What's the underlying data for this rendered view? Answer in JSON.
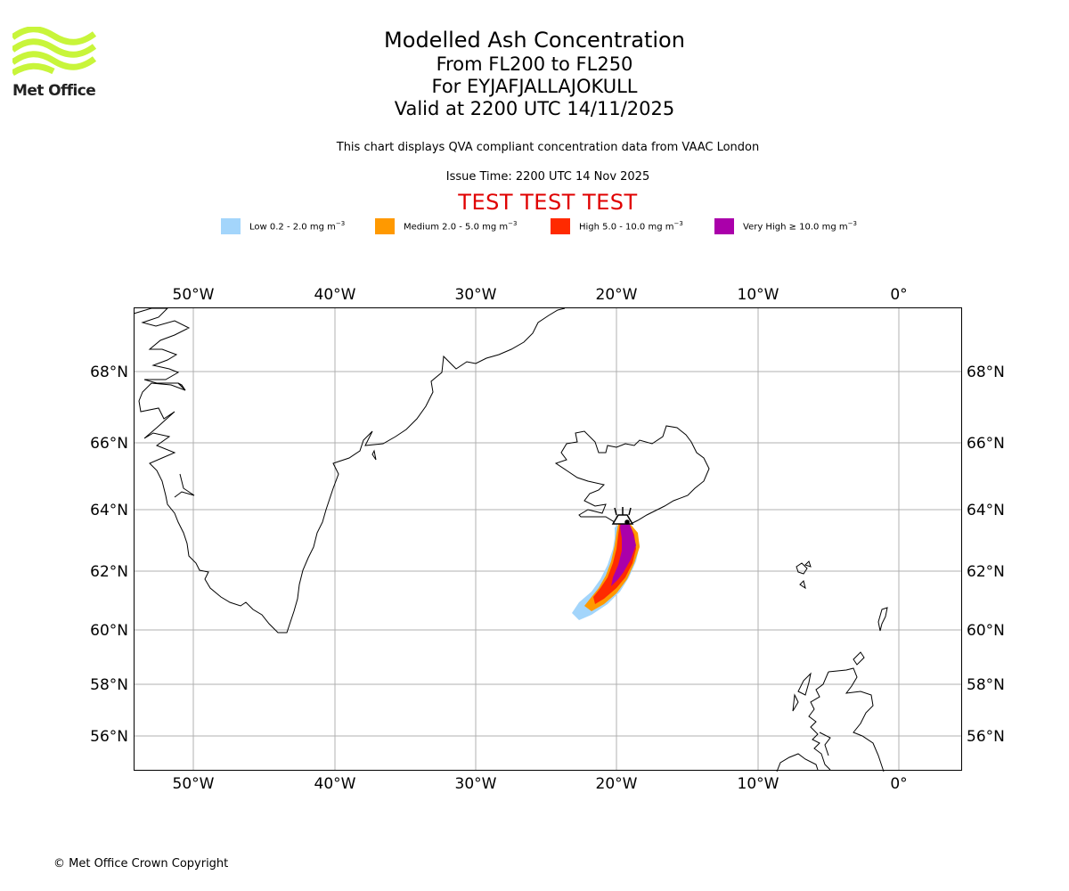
{
  "header": {
    "logo_text": "Met Office",
    "title": "Modelled Ash Concentration",
    "level_range": "From FL200 to FL250",
    "volcano": "For EYJAFJALLAJOKULL",
    "valid_time": "Valid at 2200 UTC 14/11/2025",
    "description": "This chart displays QVA compliant concentration data from VAAC London",
    "issue_time": "Issue Time: 2200 UTC 14 Nov 2025",
    "test_banner": "TEST TEST TEST"
  },
  "legend": [
    {
      "label": "Low 0.2 - 2.0 mg m",
      "exp": "−3",
      "color": "#a3d5fb"
    },
    {
      "label": "Medium 2.0 - 5.0 mg m",
      "exp": "−3",
      "color": "#ff9900"
    },
    {
      "label": "High 5.0 - 10.0 mg m",
      "exp": "−3",
      "color": "#ff2a00"
    },
    {
      "label": "Very High  ≥  10.0 mg m",
      "exp": "−3",
      "color": "#aa00aa"
    }
  ],
  "map": {
    "lon_range": [
      -54.2,
      4.4
    ],
    "lat_range": [
      54.9,
      69.8
    ],
    "lon_ticks": [
      {
        "lon": -50,
        "label": "50°W"
      },
      {
        "lon": -40,
        "label": "40°W"
      },
      {
        "lon": -30,
        "label": "30°W"
      },
      {
        "lon": -20,
        "label": "20°W"
      },
      {
        "lon": -10,
        "label": "10°W"
      },
      {
        "lon": 0,
        "label": "0°"
      }
    ],
    "lat_ticks": [
      {
        "lat": 68,
        "label": "68°N"
      },
      {
        "lat": 66,
        "label": "66°N"
      },
      {
        "lat": 64,
        "label": "64°N"
      },
      {
        "lat": 62,
        "label": "62°N"
      },
      {
        "lat": 60,
        "label": "60°N"
      },
      {
        "lat": 58,
        "label": "58°N"
      },
      {
        "lat": 56,
        "label": "56°N"
      }
    ],
    "volcano_location": {
      "lon": -19.6,
      "lat": 63.6
    },
    "ash_plume_centerline": [
      {
        "lon": -19.6,
        "lat": 63.6
      },
      {
        "lon": -19.4,
        "lat": 63.0
      },
      {
        "lon": -19.8,
        "lat": 62.3
      },
      {
        "lon": -20.6,
        "lat": 61.6
      },
      {
        "lon": -21.6,
        "lat": 61.05
      },
      {
        "lon": -22.3,
        "lat": 60.7
      }
    ]
  },
  "footer": {
    "copyright": "© Met Office Crown Copyright"
  }
}
